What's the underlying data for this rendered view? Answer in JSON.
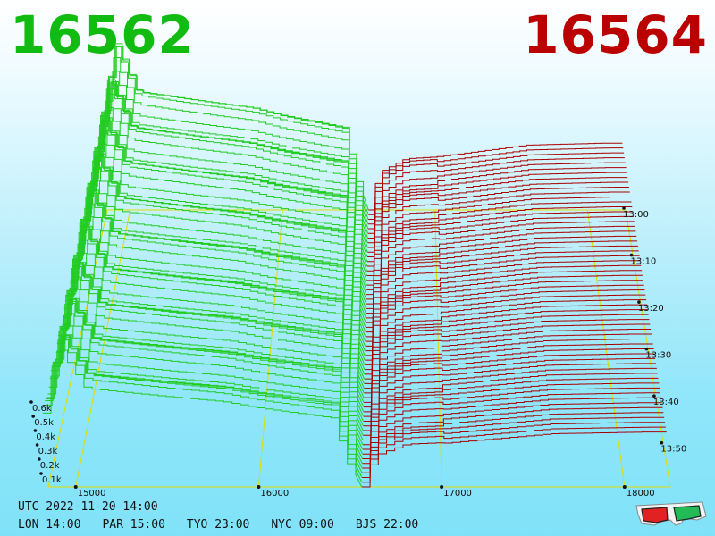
{
  "header": {
    "bid_price": "16562",
    "ask_price": "16564",
    "bid_color": "#11bb11",
    "ask_color": "#bb0000"
  },
  "footer": {
    "utc": "UTC 2022-11-20 14:00",
    "zones": [
      "LON 14:00",
      "PAR 15:00",
      "TYO 23:00",
      "NYC 09:00",
      "BJS 22:00"
    ]
  },
  "chart_data": {
    "type": "area",
    "view": "3d-waterfall",
    "x_ticks": [
      "15000",
      "16000",
      "17000",
      "18000"
    ],
    "x_range": [
      14850,
      18250
    ],
    "y_ticks": [
      "0.1k",
      "0.2k",
      "0.3k",
      "0.4k",
      "0.5k",
      "0.6k"
    ],
    "time_ticks": [
      "13:00",
      "13:10",
      "13:20",
      "13:30",
      "13:40",
      "13:50"
    ],
    "time_range": [
      "13:00",
      "13:59"
    ],
    "split_price": 16563,
    "series": [
      {
        "side": "bid",
        "color": "#22cc22"
      },
      {
        "side": "ask",
        "color": "#aa0000"
      }
    ],
    "profile_bid": [
      [
        14820,
        0.45
      ],
      [
        14900,
        0.85
      ],
      [
        15050,
        0.6
      ],
      [
        15500,
        0.55
      ],
      [
        15800,
        0.52
      ],
      [
        16000,
        0.48
      ],
      [
        16400,
        0.42
      ],
      [
        16480,
        0.15
      ],
      [
        16520,
        0.1
      ],
      [
        16562,
        0.0
      ]
    ],
    "profile_ask": [
      [
        16564,
        0.0
      ],
      [
        16600,
        0.12
      ],
      [
        16650,
        0.2
      ],
      [
        16800,
        0.26
      ],
      [
        17000,
        0.27
      ],
      [
        17200,
        0.29
      ],
      [
        17600,
        0.33
      ],
      [
        18100,
        0.34
      ]
    ],
    "glasses_icon": "anaglyph-3d-glasses-icon"
  }
}
